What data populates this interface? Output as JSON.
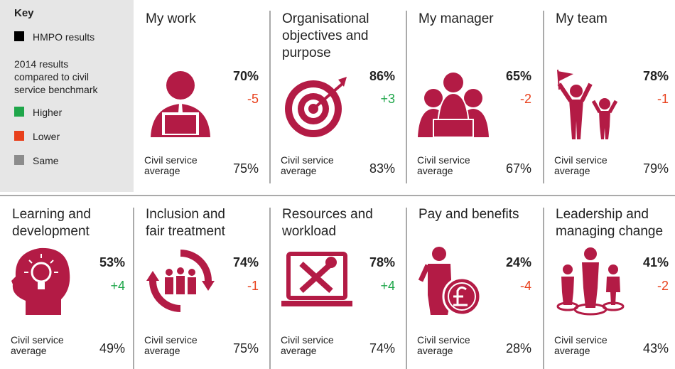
{
  "key": {
    "title": "Key",
    "items": [
      {
        "label": "HMPO results",
        "color": "#000000"
      },
      {
        "label_lines": [
          "2014 results",
          "compared to civil",
          "service benchmark"
        ]
      },
      {
        "label": "Higher",
        "color": "#1fa64a"
      },
      {
        "label": "Lower",
        "color": "#e8401c"
      },
      {
        "label": "Same",
        "color": "#8c8c8c"
      }
    ]
  },
  "top_row": [
    {
      "title_lines": [
        "My work"
      ],
      "score": "70%",
      "change": "-5",
      "change_color": "#e8401c",
      "benchmark_label_lines": [
        "Civil service",
        "average"
      ],
      "benchmark": "75%"
    },
    {
      "title_lines": [
        "Organisational",
        "objectives and",
        "purpose"
      ],
      "score": "86%",
      "change": "+3",
      "change_color": "#1fa64a",
      "benchmark_label_lines": [
        "Civil service",
        "average"
      ],
      "benchmark": "83%"
    },
    {
      "title_lines": [
        "My manager"
      ],
      "score": "65%",
      "change": "-2",
      "change_color": "#e8401c",
      "benchmark_label_lines": [
        "Civil service",
        "average"
      ],
      "benchmark": "67%"
    },
    {
      "title_lines": [
        "My team"
      ],
      "score": "78%",
      "change": "-1",
      "change_color": "#e8401c",
      "benchmark_label_lines": [
        "Civil service",
        "average"
      ],
      "benchmark": "79%"
    }
  ],
  "bottom_row": [
    {
      "title_lines": [
        "Learning and",
        "development"
      ],
      "score": "53%",
      "change": "+4",
      "change_color": "#1fa64a",
      "benchmark_label_lines": [
        "Civil service",
        "average"
      ],
      "benchmark": "49%"
    },
    {
      "title_lines": [
        "Inclusion and",
        "fair treatment"
      ],
      "score": "74%",
      "change": "-1",
      "change_color": "#e8401c",
      "benchmark_label_lines": [
        "Civil service",
        "average"
      ],
      "benchmark": "75%"
    },
    {
      "title_lines": [
        "Resources and",
        "workload"
      ],
      "score": "78%",
      "change": "+4",
      "change_color": "#1fa64a",
      "benchmark_label_lines": [
        "Civil service",
        "average"
      ],
      "benchmark": "74%"
    },
    {
      "title_lines": [
        "Pay and benefits"
      ],
      "score": "24%",
      "change": "-4",
      "change_color": "#e8401c",
      "benchmark_label_lines": [
        "Civil service",
        "average"
      ],
      "benchmark": "28%"
    },
    {
      "title_lines": [
        "Leadership and",
        "managing change"
      ],
      "score": "41%",
      "change": "-2",
      "change_color": "#e8401c",
      "benchmark_label_lines": [
        "Civil service",
        "average"
      ],
      "benchmark": "43%"
    }
  ]
}
